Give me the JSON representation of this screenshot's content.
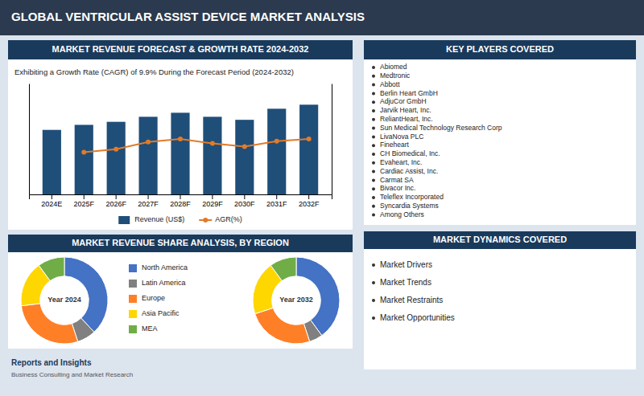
{
  "title": "GLOBAL VENTRICULAR ASSIST DEVICE MARKET ANALYSIS",
  "chart_data": [
    {
      "type": "bar",
      "title": "MARKET REVENUE FORECAST & GROWTH RATE 2024-2032",
      "subtitle": "Exhibiting a Growth Rate (CAGR) of 9.9% During the Forecast Period (2024-2032)",
      "categories": [
        "2024E",
        "2025F",
        "2026F",
        "2027F",
        "2028F",
        "2029F",
        "2030F",
        "2031F",
        "2032F"
      ],
      "series": [
        {
          "name": "Revenue (US$)",
          "type": "bar",
          "color": "#1f4e79",
          "values": [
            3.2,
            3.45,
            3.6,
            3.85,
            4.05,
            3.85,
            3.7,
            4.25,
            4.45
          ]
        },
        {
          "name": "AGR(%)",
          "type": "line",
          "color": "#e07b2a",
          "marker": "circle",
          "axis": "y2",
          "values": [
            null,
            9.5,
            10.2,
            11.8,
            12.5,
            11.5,
            10.8,
            12.0,
            12.5
          ]
        }
      ],
      "ylim": [
        0,
        5.5
      ],
      "y2lim": [
        0,
        25
      ],
      "grid": false,
      "legend": "bottom",
      "tick_labels": "x"
    },
    {
      "type": "pie",
      "title": "MARKET REVENUE SHARE ANALYSIS, BY REGION",
      "subtitle": "Year 2024",
      "categories": [
        "North America",
        "Latin America",
        "Europe",
        "Asia Pacific",
        "MEA"
      ],
      "values": [
        38,
        7,
        28,
        17,
        10
      ],
      "colors": [
        "#4472c4",
        "#808080",
        "#ff7f27",
        "#ffd700",
        "#70ad47"
      ],
      "legend": "center"
    },
    {
      "type": "pie",
      "subtitle": "Year 2032",
      "values": [
        40,
        5,
        25,
        20,
        10
      ],
      "colors": [
        "#4472c4",
        "#808080",
        "#ff7f27",
        "#ffd700",
        "#70ad47"
      ]
    }
  ],
  "annotations": [
    {
      "title": "KEY PLAYERS COVERED",
      "items": [
        "Abiomed",
        "Medtronic",
        "Abbott",
        "Berlin Heart GmbH",
        "AdjuCor GmbH",
        "Jarvik Heart, Inc.",
        "ReliantHeart, Inc.",
        "Sun Medical Technology Research Corp",
        "LivaNova PLC",
        "Fineheart",
        "CH Biomedical, Inc.",
        "Evaheart, Inc.",
        "Cardiac Assist, Inc.",
        "Carmat SA",
        "Bivacor Inc.",
        "Teleflex Incorporated",
        "Syncardia Systems",
        "Among Others"
      ]
    },
    {
      "title": "MARKET DYNAMICS COVERED",
      "items": [
        "Market Drivers",
        "Market Trends",
        "Market Restraints",
        "Market Opportunities"
      ]
    },
    {
      "title": "Reports and Insights",
      "items": [
        "Business Consulting and Market Research"
      ]
    }
  ]
}
